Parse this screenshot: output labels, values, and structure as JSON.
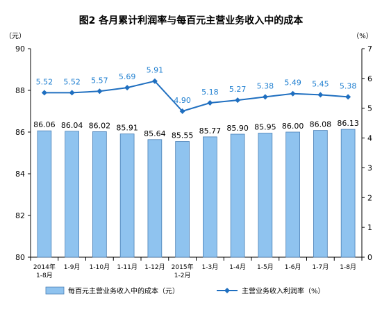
{
  "chart_data": {
    "type": "bar+line",
    "title": "图2  各月累计利润率与每百元主营业务收入中的成本",
    "categories": [
      [
        "2014年",
        "1-8月"
      ],
      [
        "1-9月"
      ],
      [
        "1-10月"
      ],
      [
        "1-11月"
      ],
      [
        "1-12月"
      ],
      [
        "2015年",
        "1-2月"
      ],
      [
        "1-3月"
      ],
      [
        "1-4月"
      ],
      [
        "1-5月"
      ],
      [
        "1-6月"
      ],
      [
        "1-7月"
      ],
      [
        "1-8月"
      ]
    ],
    "bar_series": {
      "name": "每百元主营业务收入中的成本（元）",
      "values": [
        86.06,
        86.04,
        86.02,
        85.91,
        85.64,
        85.55,
        85.77,
        85.9,
        85.95,
        86.0,
        86.08,
        86.13
      ],
      "labels": [
        "86.06",
        "86.04",
        "86.02",
        "85.91",
        "85.64",
        "85.55",
        "85.77",
        "85.90",
        "85.95",
        "86.00",
        "86.08",
        "86.13"
      ],
      "color": "#8fc3ef"
    },
    "line_series": {
      "name": "主营业务收入利润率（%）",
      "values": [
        5.52,
        5.52,
        5.57,
        5.69,
        5.91,
        4.9,
        5.18,
        5.27,
        5.38,
        5.49,
        5.45,
        5.38
      ],
      "labels": [
        "5.52",
        "5.52",
        "5.57",
        "5.69",
        "5.91",
        "4.90",
        "5.18",
        "5.27",
        "5.38",
        "5.49",
        "5.45",
        "5.38"
      ],
      "color": "#1f6fc0"
    },
    "y_left": {
      "unit": "（元）",
      "min": 80,
      "max": 90,
      "ticks": [
        "80",
        "82",
        "84",
        "86",
        "88",
        "90"
      ]
    },
    "y_right": {
      "unit": "（%）",
      "min": 0,
      "max": 7,
      "ticks": [
        "0",
        "1",
        "2",
        "3",
        "4",
        "5",
        "6",
        "7"
      ]
    },
    "legend_position": "bottom",
    "grid": false
  }
}
